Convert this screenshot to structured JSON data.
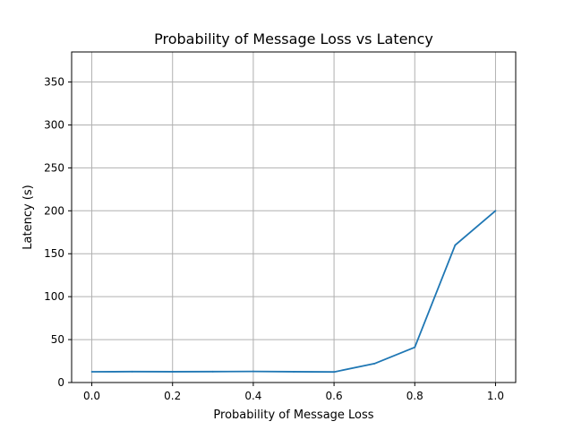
{
  "chart_data": {
    "type": "line",
    "title": "Probability of Message Loss vs Latency",
    "xlabel": "Probability of Message Loss",
    "ylabel": "Latency (s)",
    "xlim": [
      -0.05,
      1.05
    ],
    "ylim": [
      0,
      385
    ],
    "xticks": [
      0.0,
      0.2,
      0.4,
      0.6,
      0.8,
      1.0
    ],
    "xtick_labels": [
      "0.0",
      "0.2",
      "0.4",
      "0.6",
      "0.8",
      "1.0"
    ],
    "yticks": [
      0,
      50,
      100,
      150,
      200,
      250,
      300,
      350
    ],
    "ytick_labels": [
      "0",
      "50",
      "100",
      "150",
      "200",
      "250",
      "300",
      "350"
    ],
    "grid": true,
    "series": [
      {
        "color": "#1f77b4",
        "x": [
          0.0,
          0.1,
          0.2,
          0.3,
          0.4,
          0.5,
          0.6,
          0.7,
          0.8,
          0.9,
          1.0
        ],
        "y": [
          12.5,
          12.7,
          12.6,
          12.7,
          12.9,
          12.6,
          12.3,
          22,
          41,
          160,
          200
        ]
      }
    ]
  }
}
